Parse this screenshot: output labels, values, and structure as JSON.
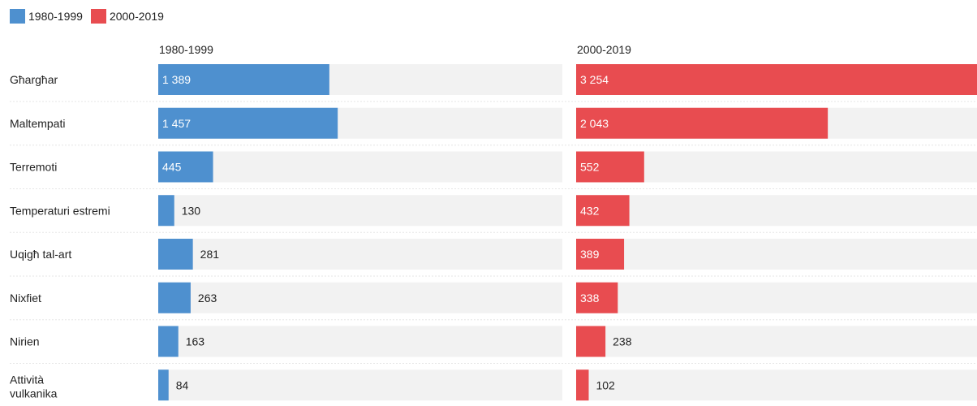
{
  "legend": [
    {
      "label": "1980-1999",
      "color": "#4e90cf"
    },
    {
      "label": "2000-2019",
      "color": "#e84c50"
    }
  ],
  "chart_data": {
    "type": "bar",
    "orientation": "horizontal",
    "layout": "small-multiples",
    "categories": [
      "Għargħar",
      "Maltempati",
      "Terremoti",
      "Temperaturi estremi",
      "Uqigħ tal-art",
      "Nixfiet",
      "Nirien",
      "Attività vulkanika"
    ],
    "series": [
      {
        "name": "1980-1999",
        "color": "#4e90cf",
        "values": [
          1389,
          1457,
          445,
          130,
          281,
          263,
          163,
          84
        ],
        "value_labels": [
          "1 389",
          "1 457",
          "445",
          "130",
          "281",
          "263",
          "163",
          "84"
        ]
      },
      {
        "name": "2000-2019",
        "color": "#e84c50",
        "values": [
          3254,
          2043,
          552,
          432,
          389,
          338,
          238,
          102
        ],
        "value_labels": [
          "3 254",
          "2 043",
          "552",
          "432",
          "389",
          "338",
          "238",
          "102"
        ]
      }
    ],
    "xlim": [
      0,
      3254
    ],
    "grid": false,
    "legend_position": "top-left"
  }
}
